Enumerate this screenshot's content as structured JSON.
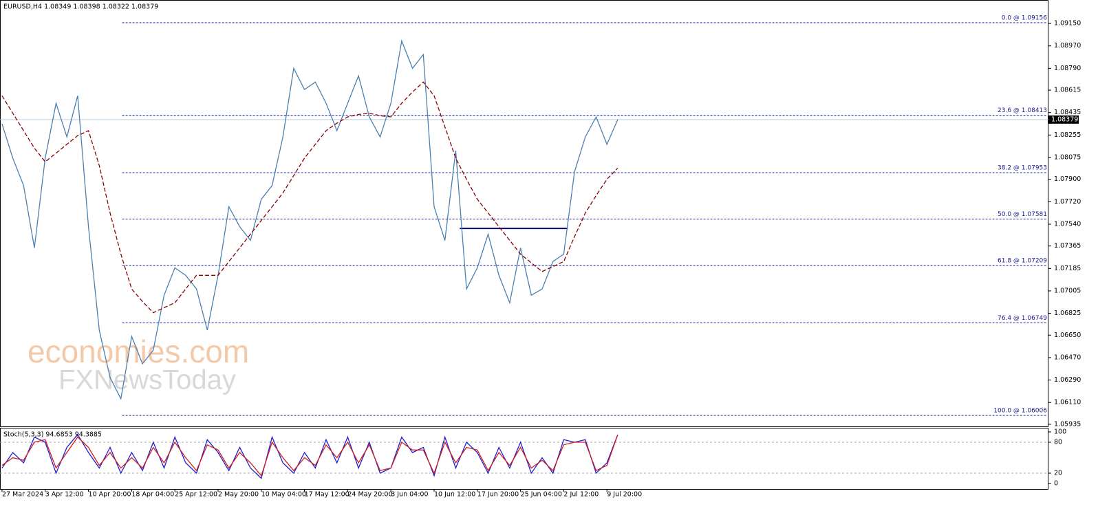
{
  "watermark": [
    "economies.com",
    "FXNewsToday"
  ],
  "chart_data": [
    {
      "type": "line",
      "title": "EURUSD,H4  1.08349 1.08398 1.08322 1.08379",
      "x": [
        0,
        8,
        16,
        24,
        32,
        40,
        48,
        56,
        64,
        72,
        80,
        88,
        96,
        104,
        112,
        120,
        128,
        136,
        144,
        152,
        160,
        168,
        176,
        184,
        192,
        200,
        208,
        216,
        224,
        232,
        240,
        248,
        256,
        264,
        272,
        280,
        288,
        296,
        304,
        312,
        320,
        328,
        336,
        344,
        352,
        360,
        368,
        376,
        384,
        392,
        400,
        408,
        416,
        424,
        432,
        440,
        448,
        456
      ],
      "series": [
        {
          "color": "#4a7fb0",
          "style": "solid",
          "values": [
            1.08345,
            1.0807,
            1.0785,
            1.0735,
            1.0807,
            1.0851,
            1.0824,
            1.0857,
            1.0752,
            1.0669,
            1.0631,
            1.0614,
            1.0664,
            1.0642,
            1.0653,
            1.0697,
            1.0719,
            1.0713,
            1.0702,
            1.0669,
            1.0713,
            1.0768,
            1.0752,
            1.0741,
            1.0774,
            1.0785,
            1.0824,
            1.0879,
            1.0862,
            1.0868,
            1.0851,
            1.0829,
            1.0851,
            1.0873,
            1.084,
            1.0824,
            1.0851,
            1.0901,
            1.0879,
            1.089,
            1.0768,
            1.0741,
            1.0813,
            1.0702,
            1.0719,
            1.0746,
            1.0713,
            1.0691,
            1.0735,
            1.0697,
            1.0702,
            1.0724,
            1.073,
            1.0796,
            1.0824,
            1.084,
            1.0818,
            1.08379
          ]
        },
        {
          "color": "#8b0000",
          "style": "dashed",
          "values": [
            1.0857,
            1.0843,
            1.0829,
            1.0815,
            1.0804,
            1.0811,
            1.0818,
            1.0825,
            1.0829,
            1.0801,
            1.0763,
            1.073,
            1.0702,
            1.0692,
            1.0683,
            1.0687,
            1.0691,
            1.0702,
            1.0713,
            1.0713,
            1.0713,
            1.0724,
            1.0735,
            1.0746,
            1.0757,
            1.0768,
            1.0779,
            1.0793,
            1.0807,
            1.0818,
            1.0829,
            1.0835,
            1.084,
            1.0842,
            1.0843,
            1.0841,
            1.084,
            1.0851,
            1.086,
            1.0868,
            1.0857,
            1.0832,
            1.0807,
            1.079,
            1.0774,
            1.0763,
            1.0752,
            1.0741,
            1.073,
            1.0723,
            1.0716,
            1.072,
            1.0724,
            1.0744,
            1.0763,
            1.0777,
            1.079,
            1.0799
          ]
        }
      ],
      "xlim": [
        -1.5,
        775
      ],
      "ylim": [
        1.05918,
        1.09338
      ],
      "yticks": [
        {
          "value": 1.0915,
          "label": "1.09150"
        },
        {
          "value": 1.0897,
          "label": "1.08970"
        },
        {
          "value": 1.0879,
          "label": "1.08790"
        },
        {
          "value": 1.08615,
          "label": "1.08615"
        },
        {
          "value": 1.08435,
          "label": "1.08435"
        },
        {
          "value": 1.08255,
          "label": "1.08255"
        },
        {
          "value": 1.08075,
          "label": "1.08075"
        },
        {
          "value": 1.079,
          "label": "1.07900"
        },
        {
          "value": 1.0772,
          "label": "1.07720"
        },
        {
          "value": 1.0754,
          "label": "1.07540"
        },
        {
          "value": 1.07365,
          "label": "1.07365"
        },
        {
          "value": 1.07185,
          "label": "1.07185"
        },
        {
          "value": 1.07005,
          "label": "1.07005"
        },
        {
          "value": 1.06825,
          "label": "1.06825"
        },
        {
          "value": 1.0665,
          "label": "1.06650"
        },
        {
          "value": 1.0647,
          "label": "1.06470"
        },
        {
          "value": 1.0629,
          "label": "1.06290"
        },
        {
          "value": 1.0611,
          "label": "1.06110"
        },
        {
          "value": 1.05935,
          "label": "1.05935"
        }
      ],
      "levels": [
        {
          "value": 1.09156,
          "label": "0.0 @ 1.09156"
        },
        {
          "value": 1.08413,
          "label": "23.6 @ 1.08413"
        },
        {
          "value": 1.07953,
          "label": "38.2 @ 1.07953"
        },
        {
          "value": 1.07581,
          "label": "50.0 @ 1.07581"
        },
        {
          "value": 1.07209,
          "label": "61.8 @ 1.07209"
        },
        {
          "value": 1.06749,
          "label": "76.4 @ 1.06749"
        },
        {
          "value": 1.06006,
          "label": "100.0 @ 1.06006"
        }
      ],
      "levels_start": 89,
      "hline": {
        "value": 1.07506,
        "x": [
          339,
          419
        ]
      },
      "last_price": {
        "value": 1.08379,
        "label": "1.08379"
      }
    },
    {
      "type": "line",
      "title": "Stoch(5,3,3) 94.6853 94.3885",
      "x": [
        0,
        8,
        16,
        24,
        32,
        40,
        48,
        56,
        64,
        72,
        80,
        88,
        96,
        104,
        112,
        120,
        128,
        136,
        144,
        152,
        160,
        168,
        176,
        184,
        192,
        200,
        208,
        216,
        224,
        232,
        240,
        248,
        256,
        264,
        272,
        280,
        288,
        296,
        304,
        312,
        320,
        328,
        336,
        344,
        352,
        360,
        368,
        376,
        384,
        392,
        400,
        408,
        416,
        424,
        432,
        440,
        448,
        456
      ],
      "series": [
        {
          "color": "#1f1fd0",
          "style": "solid",
          "values": [
            30,
            60,
            40,
            90,
            80,
            20,
            70,
            95,
            60,
            30,
            70,
            20,
            60,
            25,
            80,
            30,
            90,
            40,
            20,
            85,
            60,
            25,
            70,
            30,
            10,
            90,
            40,
            20,
            60,
            30,
            85,
            40,
            90,
            30,
            80,
            20,
            30,
            90,
            60,
            70,
            15,
            90,
            30,
            80,
            60,
            20,
            70,
            30,
            80,
            20,
            50,
            20,
            85,
            80,
            85,
            20,
            40,
            94.6853
          ]
        },
        {
          "color": "#d01f1f",
          "style": "solid",
          "values": [
            35,
            50,
            45,
            80,
            85,
            30,
            60,
            90,
            70,
            35,
            60,
            30,
            50,
            30,
            70,
            40,
            80,
            50,
            25,
            75,
            65,
            30,
            60,
            40,
            15,
            80,
            50,
            25,
            50,
            35,
            75,
            50,
            80,
            40,
            75,
            25,
            30,
            80,
            65,
            65,
            20,
            80,
            40,
            70,
            65,
            25,
            60,
            35,
            70,
            30,
            45,
            25,
            75,
            80,
            80,
            25,
            35,
            94.3885
          ]
        }
      ],
      "xlim": [
        -1.5,
        775
      ],
      "ylim": [
        -10.7,
        106.7
      ],
      "yticks": [
        100,
        80,
        20,
        0
      ],
      "grid_levels": [
        80,
        20
      ],
      "xticks": [
        {
          "value": 0,
          "label": "27 Mar 2024"
        },
        {
          "value": 32,
          "label": "3 Apr 12:00"
        },
        {
          "value": 64,
          "label": "10 Apr 20:00"
        },
        {
          "value": 96,
          "label": "18 Apr 04:00"
        },
        {
          "value": 128,
          "label": "25 Apr 12:00"
        },
        {
          "value": 160,
          "label": "2 May 20:00"
        },
        {
          "value": 192,
          "label": "10 May 04:00"
        },
        {
          "value": 224,
          "label": "17 May 12:00"
        },
        {
          "value": 256,
          "label": "24 May 20:00"
        },
        {
          "value": 288,
          "label": "3 Jun 04:00"
        },
        {
          "value": 320,
          "label": "10 Jun 12:00"
        },
        {
          "value": 352,
          "label": "17 Jun 20:00"
        },
        {
          "value": 384,
          "label": "25 Jun 04:00"
        },
        {
          "value": 416,
          "label": "2 Jul 12:00"
        },
        {
          "value": 448,
          "label": "9 Jul 20:00"
        }
      ]
    }
  ]
}
